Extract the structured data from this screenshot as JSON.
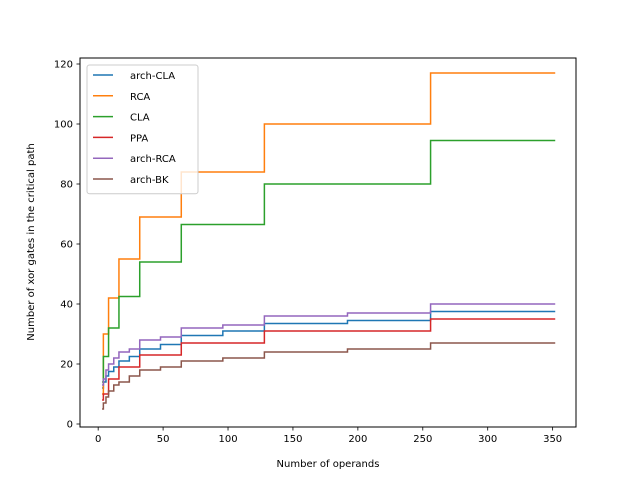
{
  "chart_data": {
    "type": "line",
    "step": true,
    "xlabel": "Number of operands",
    "ylabel": "Number of xor gates in the critical path",
    "xlim": [
      -14,
      368
    ],
    "ylim": [
      -1,
      122
    ],
    "xticks": [
      0,
      50,
      100,
      150,
      200,
      250,
      300,
      350
    ],
    "yticks": [
      0,
      20,
      40,
      60,
      80,
      100,
      120
    ],
    "grid": false,
    "legend_position": "upper-left",
    "series": [
      {
        "name": "arch-CLA",
        "color": "#1f77b4",
        "points": [
          [
            3,
            12
          ],
          [
            4,
            14
          ],
          [
            6,
            16
          ],
          [
            8,
            17.5
          ],
          [
            12,
            19
          ],
          [
            16,
            21
          ],
          [
            24,
            22.5
          ],
          [
            32,
            25
          ],
          [
            48,
            26.5
          ],
          [
            64,
            29.5
          ],
          [
            96,
            31
          ],
          [
            128,
            33.5
          ],
          [
            192,
            34.5
          ],
          [
            256,
            37.5
          ],
          [
            352,
            37.5
          ]
        ]
      },
      {
        "name": "RCA",
        "color": "#ff7f0e",
        "points": [
          [
            3,
            10
          ],
          [
            4,
            30
          ],
          [
            8,
            42
          ],
          [
            16,
            55
          ],
          [
            32,
            69
          ],
          [
            64,
            84
          ],
          [
            128,
            100
          ],
          [
            256,
            117
          ],
          [
            352,
            117
          ]
        ]
      },
      {
        "name": "CLA",
        "color": "#2ca02c",
        "points": [
          [
            3,
            14
          ],
          [
            4,
            22.5
          ],
          [
            8,
            32
          ],
          [
            16,
            42.5
          ],
          [
            32,
            54
          ],
          [
            64,
            66.5
          ],
          [
            128,
            80
          ],
          [
            256,
            94.5
          ],
          [
            352,
            94.5
          ]
        ]
      },
      {
        "name": "PPA",
        "color": "#d62728",
        "points": [
          [
            3,
            8
          ],
          [
            4,
            10
          ],
          [
            8,
            15
          ],
          [
            16,
            19
          ],
          [
            32,
            23
          ],
          [
            64,
            27
          ],
          [
            128,
            31
          ],
          [
            256,
            35
          ],
          [
            352,
            35
          ]
        ]
      },
      {
        "name": "arch-RCA",
        "color": "#9467bd",
        "points": [
          [
            3,
            13
          ],
          [
            4,
            15
          ],
          [
            6,
            18
          ],
          [
            8,
            20
          ],
          [
            12,
            22
          ],
          [
            16,
            24
          ],
          [
            24,
            25
          ],
          [
            32,
            28
          ],
          [
            48,
            29
          ],
          [
            64,
            32
          ],
          [
            96,
            33
          ],
          [
            128,
            36
          ],
          [
            192,
            37
          ],
          [
            256,
            40
          ],
          [
            352,
            40
          ]
        ]
      },
      {
        "name": "arch-BK",
        "color": "#8c564b",
        "points": [
          [
            3,
            5
          ],
          [
            4,
            7
          ],
          [
            6,
            9
          ],
          [
            8,
            11
          ],
          [
            12,
            13
          ],
          [
            16,
            14
          ],
          [
            24,
            16
          ],
          [
            32,
            18
          ],
          [
            48,
            19
          ],
          [
            64,
            21
          ],
          [
            96,
            22
          ],
          [
            128,
            24
          ],
          [
            192,
            25
          ],
          [
            256,
            27
          ],
          [
            352,
            27
          ]
        ]
      }
    ]
  }
}
